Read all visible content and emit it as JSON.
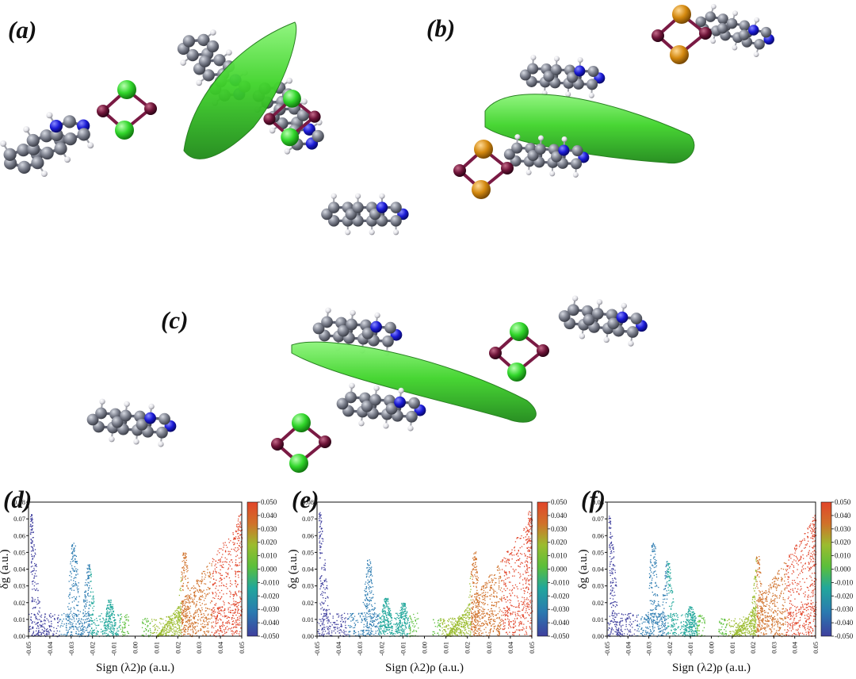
{
  "panels": {
    "a": "(a)",
    "b": "(b)",
    "c": "(c)",
    "d": "(d)",
    "e": "(e)",
    "f": "(f)"
  },
  "colors": {
    "isosurface": "#3fd42a",
    "carbon": "#7b7f8c",
    "nitrogen": "#1b1bd6",
    "hydrogen": "#e9e9ee",
    "metal": "#6e1438",
    "chlorine": "#31d62b",
    "bromine": "#d4890f",
    "colormap": [
      "#3f3f9e",
      "#2a7ab0",
      "#21a79b",
      "#5bbf3a",
      "#9bbc2f",
      "#d0712a",
      "#e2452a"
    ]
  },
  "chart_data": [
    {
      "type": "scatter",
      "panel": "(d)",
      "xlabel": "Sign (λ2)ρ (a.u.)",
      "ylabel": "δg (a.u.)",
      "xlim": [
        -0.05,
        0.05
      ],
      "ylim": [
        0.0,
        0.08
      ],
      "xticks": [
        "-0.05",
        "-0.04",
        "-0.03",
        "-0.02",
        "-0.01",
        "0.00",
        "0.01",
        "0.02",
        "0.03",
        "0.04",
        "0.05"
      ],
      "yticks": [
        "0.00",
        "0.01",
        "0.02",
        "0.03",
        "0.04",
        "0.05",
        "0.06",
        "0.07",
        "0.08"
      ],
      "colorbar": {
        "range": [
          -0.05,
          0.05
        ],
        "ticks": [
          "0.050",
          "0.040",
          "0.030",
          "0.020",
          "0.010",
          "0.000",
          "-0.010",
          "-0.020",
          "-0.030",
          "-0.040",
          "-0.050"
        ]
      },
      "spikes": [
        {
          "x": -0.049,
          "peak": 0.073
        },
        {
          "x": -0.029,
          "peak": 0.056
        },
        {
          "x": -0.022,
          "peak": 0.043
        },
        {
          "x": -0.012,
          "peak": 0.022
        },
        {
          "x": 0.023,
          "peak": 0.05
        },
        {
          "x": 0.049,
          "peak": 0.073
        }
      ]
    },
    {
      "type": "scatter",
      "panel": "(e)",
      "xlabel": "Sign (λ2)ρ (a.u.)",
      "ylabel": "δg (a.u.)",
      "xlim": [
        -0.05,
        0.05
      ],
      "ylim": [
        0.0,
        0.08
      ],
      "xticks": [
        "-0.05",
        "-0.04",
        "-0.03",
        "-0.02",
        "-0.01",
        "0.00",
        "0.01",
        "0.02",
        "0.03",
        "0.04",
        "0.05"
      ],
      "yticks": [
        "0.00",
        "0.01",
        "0.02",
        "0.03",
        "0.04",
        "0.05",
        "0.06",
        "0.07",
        "0.08"
      ],
      "colorbar": {
        "range": [
          -0.05,
          0.05
        ],
        "ticks": [
          "0.050",
          "0.040",
          "0.030",
          "0.020",
          "0.010",
          "0.000",
          "-0.010",
          "-0.020",
          "-0.030",
          "-0.040",
          "-0.050"
        ]
      },
      "spikes": [
        {
          "x": -0.049,
          "peak": 0.075
        },
        {
          "x": -0.026,
          "peak": 0.046
        },
        {
          "x": -0.018,
          "peak": 0.023
        },
        {
          "x": -0.01,
          "peak": 0.02
        },
        {
          "x": 0.023,
          "peak": 0.051
        },
        {
          "x": 0.049,
          "peak": 0.075
        }
      ]
    },
    {
      "type": "scatter",
      "panel": "(f)",
      "xlabel": "Sign (λ2)ρ (a.u.)",
      "ylabel": "δg (a.u.)",
      "xlim": [
        -0.05,
        0.05
      ],
      "ylim": [
        0.0,
        0.08
      ],
      "xticks": [
        "-0.05",
        "-0.04",
        "-0.03",
        "-0.02",
        "-0.01",
        "0.00",
        "0.01",
        "0.02",
        "0.03",
        "0.04",
        "0.05"
      ],
      "yticks": [
        "0.00",
        "0.01",
        "0.02",
        "0.03",
        "0.04",
        "0.05",
        "0.06",
        "0.07",
        "0.08"
      ],
      "colorbar": {
        "range": [
          -0.05,
          0.05
        ],
        "ticks": [
          "0.050",
          "0.040",
          "0.030",
          "0.020",
          "0.010",
          "0.000",
          "-0.010",
          "-0.020",
          "-0.030",
          "-0.040",
          "-0.050"
        ]
      },
      "spikes": [
        {
          "x": -0.049,
          "peak": 0.072
        },
        {
          "x": -0.028,
          "peak": 0.056
        },
        {
          "x": -0.021,
          "peak": 0.045
        },
        {
          "x": -0.01,
          "peak": 0.018
        },
        {
          "x": 0.022,
          "peak": 0.048
        },
        {
          "x": 0.049,
          "peak": 0.073
        }
      ]
    }
  ]
}
